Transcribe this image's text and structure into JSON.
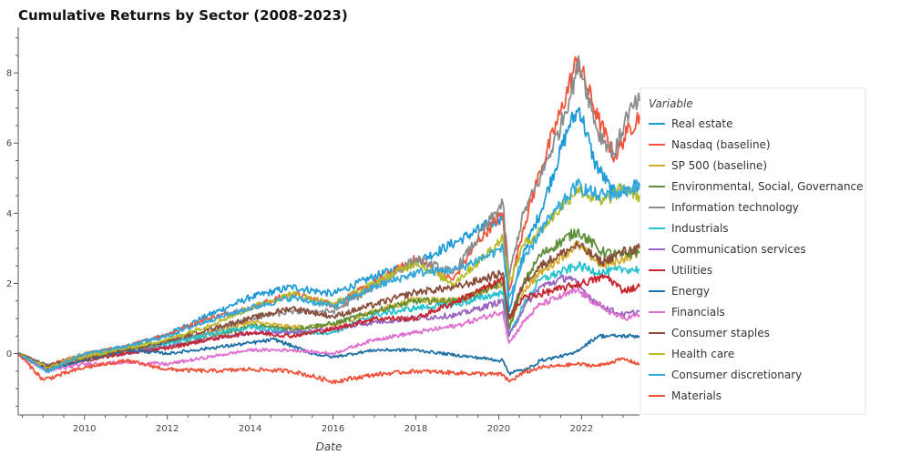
{
  "chart_data": {
    "type": "line",
    "title": "Cumulative Returns by Sector (2008-2023)",
    "xlabel": "Date",
    "ylabel": "",
    "xlim": [
      2008.4,
      2023.4
    ],
    "ylim": [
      -1.75,
      9.3
    ],
    "x_ticks": [
      2010,
      2012,
      2014,
      2016,
      2018,
      2020,
      2022
    ],
    "y_ticks": [
      0,
      2,
      4,
      6,
      8
    ],
    "legend": {
      "title": "Variable",
      "position": "right"
    },
    "series": [
      {
        "name": "Real estate",
        "color": "#1f9bd6",
        "points": [
          [
            2008.4,
            0
          ],
          [
            2009.1,
            -0.35
          ],
          [
            2010,
            0
          ],
          [
            2011,
            0.2
          ],
          [
            2012,
            0.55
          ],
          [
            2013,
            1.1
          ],
          [
            2014,
            1.6
          ],
          [
            2015,
            1.9
          ],
          [
            2016,
            1.7
          ],
          [
            2017,
            2.2
          ],
          [
            2018,
            2.6
          ],
          [
            2019,
            3.2
          ],
          [
            2020.1,
            3.9
          ],
          [
            2020.25,
            1.2
          ],
          [
            2020.6,
            2.9
          ],
          [
            2021,
            4
          ],
          [
            2021.7,
            6.5
          ],
          [
            2021.95,
            7.0
          ],
          [
            2022.3,
            5.5
          ],
          [
            2022.75,
            4.6
          ],
          [
            2023.1,
            4.7
          ],
          [
            2023.4,
            4.8
          ]
        ]
      },
      {
        "name": "Nasdaq (baseline)",
        "color": "#f3543a",
        "points": [
          [
            2008.4,
            0
          ],
          [
            2009,
            -0.4
          ],
          [
            2010,
            0
          ],
          [
            2011,
            0.2
          ],
          [
            2012,
            0.55
          ],
          [
            2013,
            1.0
          ],
          [
            2014,
            1.3
          ],
          [
            2015,
            1.7
          ],
          [
            2016,
            1.4
          ],
          [
            2017,
            2.0
          ],
          [
            2018,
            2.7
          ],
          [
            2018.9,
            2.1
          ],
          [
            2019.5,
            3.2
          ],
          [
            2020.1,
            4.0
          ],
          [
            2020.25,
            1.8
          ],
          [
            2020.6,
            3.6
          ],
          [
            2021,
            5.2
          ],
          [
            2021.5,
            6.9
          ],
          [
            2021.9,
            8.4
          ],
          [
            2022.4,
            6.7
          ],
          [
            2022.8,
            5.6
          ],
          [
            2023.1,
            6.3
          ],
          [
            2023.4,
            6.8
          ]
        ]
      },
      {
        "name": "SP 500 (baseline)",
        "color": "#d4ad2a",
        "points": [
          [
            2008.4,
            0
          ],
          [
            2009.1,
            -0.4
          ],
          [
            2010,
            0
          ],
          [
            2011,
            0.15
          ],
          [
            2012,
            0.3
          ],
          [
            2013,
            0.6
          ],
          [
            2014,
            0.9
          ],
          [
            2015,
            0.75
          ],
          [
            2016,
            0.8
          ],
          [
            2017,
            1.2
          ],
          [
            2018,
            1.55
          ],
          [
            2019,
            1.5
          ],
          [
            2020.1,
            2.0
          ],
          [
            2020.25,
            0.8
          ],
          [
            2020.6,
            1.8
          ],
          [
            2021,
            2.3
          ],
          [
            2021.9,
            3.1
          ],
          [
            2022.5,
            2.5
          ],
          [
            2023,
            2.7
          ],
          [
            2023.4,
            2.9
          ]
        ]
      },
      {
        "name": "Environmental, Social, Governance",
        "color": "#5f8f3c",
        "points": [
          [
            2008.4,
            0
          ],
          [
            2009.1,
            -0.45
          ],
          [
            2010,
            -0.1
          ],
          [
            2011,
            0.1
          ],
          [
            2012,
            0.2
          ],
          [
            2013,
            0.45
          ],
          [
            2014,
            0.8
          ],
          [
            2015,
            0.7
          ],
          [
            2016,
            0.85
          ],
          [
            2017,
            1.2
          ],
          [
            2018,
            1.5
          ],
          [
            2019,
            1.5
          ],
          [
            2020.1,
            2.0
          ],
          [
            2020.25,
            0.7
          ],
          [
            2020.6,
            2.0
          ],
          [
            2021,
            2.8
          ],
          [
            2021.9,
            3.5
          ],
          [
            2022.5,
            2.9
          ],
          [
            2023,
            2.8
          ],
          [
            2023.4,
            2.9
          ]
        ]
      },
      {
        "name": "Information technology",
        "color": "#8c8c8c",
        "points": [
          [
            2008.4,
            0
          ],
          [
            2009.1,
            -0.45
          ],
          [
            2010,
            -0.1
          ],
          [
            2011,
            0
          ],
          [
            2012,
            0.3
          ],
          [
            2013,
            0.6
          ],
          [
            2014,
            1.0
          ],
          [
            2015,
            1.2
          ],
          [
            2016,
            1.2
          ],
          [
            2017,
            1.9
          ],
          [
            2018,
            2.7
          ],
          [
            2018.9,
            2.3
          ],
          [
            2019.5,
            3.3
          ],
          [
            2020.1,
            4.3
          ],
          [
            2020.25,
            2.2
          ],
          [
            2020.6,
            4.0
          ],
          [
            2021,
            5.0
          ],
          [
            2021.5,
            6.5
          ],
          [
            2021.95,
            8.3
          ],
          [
            2022.4,
            6.3
          ],
          [
            2022.8,
            5.7
          ],
          [
            2023.1,
            6.8
          ],
          [
            2023.4,
            7.2
          ]
        ]
      },
      {
        "name": "Industrials",
        "color": "#27c2cf",
        "points": [
          [
            2008.4,
            0
          ],
          [
            2009.1,
            -0.5
          ],
          [
            2010,
            -0.1
          ],
          [
            2011,
            0.1
          ],
          [
            2012,
            0.3
          ],
          [
            2013,
            0.55
          ],
          [
            2014,
            0.75
          ],
          [
            2015,
            0.6
          ],
          [
            2016,
            0.6
          ],
          [
            2017,
            1.1
          ],
          [
            2018,
            1.3
          ],
          [
            2019,
            1.4
          ],
          [
            2020.1,
            1.75
          ],
          [
            2020.25,
            0.5
          ],
          [
            2020.6,
            1.4
          ],
          [
            2021,
            2.1
          ],
          [
            2021.9,
            2.5
          ],
          [
            2022.5,
            2.3
          ],
          [
            2023,
            2.4
          ],
          [
            2023.4,
            2.4
          ]
        ]
      },
      {
        "name": "Communication services",
        "color": "#9a63be",
        "points": [
          [
            2008.4,
            0
          ],
          [
            2009.1,
            -0.4
          ],
          [
            2010,
            -0.1
          ],
          [
            2011,
            0
          ],
          [
            2012,
            0.2
          ],
          [
            2013,
            0.4
          ],
          [
            2014,
            0.6
          ],
          [
            2015,
            0.6
          ],
          [
            2016,
            0.7
          ],
          [
            2017,
            0.9
          ],
          [
            2018,
            1.0
          ],
          [
            2019,
            1.1
          ],
          [
            2020.1,
            1.5
          ],
          [
            2020.25,
            0.5
          ],
          [
            2020.6,
            1.3
          ],
          [
            2021,
            1.9
          ],
          [
            2021.7,
            2.2
          ],
          [
            2022.4,
            1.4
          ],
          [
            2023,
            1.1
          ],
          [
            2023.4,
            1.2
          ]
        ]
      },
      {
        "name": "Utilities",
        "color": "#c7252e",
        "points": [
          [
            2008.4,
            0
          ],
          [
            2009.1,
            -0.4
          ],
          [
            2010,
            -0.2
          ],
          [
            2011,
            0
          ],
          [
            2012,
            0.15
          ],
          [
            2013,
            0.4
          ],
          [
            2014,
            0.6
          ],
          [
            2015,
            0.5
          ],
          [
            2016,
            0.7
          ],
          [
            2017,
            1.0
          ],
          [
            2018,
            1.0
          ],
          [
            2019,
            1.5
          ],
          [
            2020.1,
            2.1
          ],
          [
            2020.25,
            1.0
          ],
          [
            2020.6,
            1.6
          ],
          [
            2021,
            1.7
          ],
          [
            2022,
            2.0
          ],
          [
            2022.6,
            2.2
          ],
          [
            2023,
            1.8
          ],
          [
            2023.4,
            1.9
          ]
        ]
      },
      {
        "name": "Energy",
        "color": "#1d6fa6",
        "points": [
          [
            2008.4,
            0
          ],
          [
            2009.1,
            -0.45
          ],
          [
            2010,
            -0.2
          ],
          [
            2011,
            0.1
          ],
          [
            2012,
            0
          ],
          [
            2013,
            0.15
          ],
          [
            2014,
            0.3
          ],
          [
            2014.6,
            0.4
          ],
          [
            2015.5,
            0
          ],
          [
            2016,
            -0.1
          ],
          [
            2017,
            0.1
          ],
          [
            2018,
            0.1
          ],
          [
            2019,
            -0.05
          ],
          [
            2020.1,
            -0.2
          ],
          [
            2020.25,
            -0.55
          ],
          [
            2020.7,
            -0.45
          ],
          [
            2021,
            -0.2
          ],
          [
            2021.8,
            0
          ],
          [
            2022.4,
            0.5
          ],
          [
            2022.9,
            0.5
          ],
          [
            2023.4,
            0.5
          ]
        ]
      },
      {
        "name": "Financials",
        "color": "#df6fcf",
        "points": [
          [
            2008.4,
            0
          ],
          [
            2009.1,
            -0.5
          ],
          [
            2010,
            -0.3
          ],
          [
            2011,
            -0.25
          ],
          [
            2012,
            -0.3
          ],
          [
            2013,
            -0.1
          ],
          [
            2014,
            0.1
          ],
          [
            2015,
            0.1
          ],
          [
            2016,
            0.0
          ],
          [
            2017,
            0.4
          ],
          [
            2018,
            0.6
          ],
          [
            2019,
            0.8
          ],
          [
            2020.1,
            1.2
          ],
          [
            2020.25,
            0.3
          ],
          [
            2020.6,
            0.9
          ],
          [
            2021,
            1.4
          ],
          [
            2021.9,
            1.8
          ],
          [
            2022.5,
            1.3
          ],
          [
            2023,
            1.0
          ],
          [
            2023.4,
            1.1
          ]
        ]
      },
      {
        "name": "Consumer staples",
        "color": "#8a4f3c",
        "points": [
          [
            2008.4,
            0
          ],
          [
            2009.1,
            -0.35
          ],
          [
            2010,
            -0.15
          ],
          [
            2011,
            0.1
          ],
          [
            2012,
            0.35
          ],
          [
            2013,
            0.7
          ],
          [
            2014,
            1.0
          ],
          [
            2015,
            1.3
          ],
          [
            2016,
            1.05
          ],
          [
            2017,
            1.4
          ],
          [
            2018,
            1.75
          ],
          [
            2019,
            1.9
          ],
          [
            2020.1,
            2.3
          ],
          [
            2020.25,
            1.0
          ],
          [
            2020.6,
            2.0
          ],
          [
            2021,
            2.5
          ],
          [
            2021.9,
            3.1
          ],
          [
            2022.5,
            2.6
          ],
          [
            2023,
            2.9
          ],
          [
            2023.4,
            3.0
          ]
        ]
      },
      {
        "name": "Health care",
        "color": "#b7bb28",
        "points": [
          [
            2008.4,
            0
          ],
          [
            2009.1,
            -0.4
          ],
          [
            2010,
            -0.1
          ],
          [
            2011,
            0.15
          ],
          [
            2012,
            0.4
          ],
          [
            2013,
            0.8
          ],
          [
            2014,
            1.3
          ],
          [
            2015,
            1.7
          ],
          [
            2016,
            1.4
          ],
          [
            2017,
            2.0
          ],
          [
            2018,
            2.6
          ],
          [
            2018.9,
            2.0
          ],
          [
            2019.5,
            2.6
          ],
          [
            2020.1,
            3.3
          ],
          [
            2020.25,
            2.0
          ],
          [
            2020.6,
            3.1
          ],
          [
            2021,
            3.5
          ],
          [
            2021.9,
            4.7
          ],
          [
            2022.5,
            4.3
          ],
          [
            2023,
            4.7
          ],
          [
            2023.4,
            4.5
          ]
        ]
      },
      {
        "name": "Consumer discretionary",
        "color": "#33a9dc",
        "points": [
          [
            2008.4,
            0
          ],
          [
            2009.1,
            -0.5
          ],
          [
            2010,
            0
          ],
          [
            2011,
            0.2
          ],
          [
            2012,
            0.5
          ],
          [
            2013,
            0.95
          ],
          [
            2014,
            1.3
          ],
          [
            2015,
            1.6
          ],
          [
            2016,
            1.35
          ],
          [
            2017,
            1.9
          ],
          [
            2018,
            2.3
          ],
          [
            2019,
            2.4
          ],
          [
            2020.1,
            3.0
          ],
          [
            2020.25,
            1.6
          ],
          [
            2020.6,
            2.6
          ],
          [
            2021,
            3.5
          ],
          [
            2021.9,
            4.8
          ],
          [
            2022.4,
            4.5
          ],
          [
            2023,
            4.6
          ],
          [
            2023.4,
            4.8
          ]
        ]
      },
      {
        "name": "Materials",
        "color": "#f04f36",
        "points": [
          [
            2008.4,
            0
          ],
          [
            2009,
            -0.75
          ],
          [
            2010,
            -0.4
          ],
          [
            2011,
            -0.2
          ],
          [
            2012,
            -0.45
          ],
          [
            2013,
            -0.5
          ],
          [
            2014,
            -0.45
          ],
          [
            2015,
            -0.5
          ],
          [
            2016,
            -0.8
          ],
          [
            2017,
            -0.6
          ],
          [
            2018,
            -0.5
          ],
          [
            2019,
            -0.55
          ],
          [
            2020.1,
            -0.6
          ],
          [
            2020.25,
            -0.8
          ],
          [
            2020.6,
            -0.55
          ],
          [
            2021,
            -0.4
          ],
          [
            2021.9,
            -0.3
          ],
          [
            2022.4,
            -0.35
          ],
          [
            2023,
            -0.15
          ],
          [
            2023.4,
            -0.3
          ]
        ]
      }
    ]
  }
}
